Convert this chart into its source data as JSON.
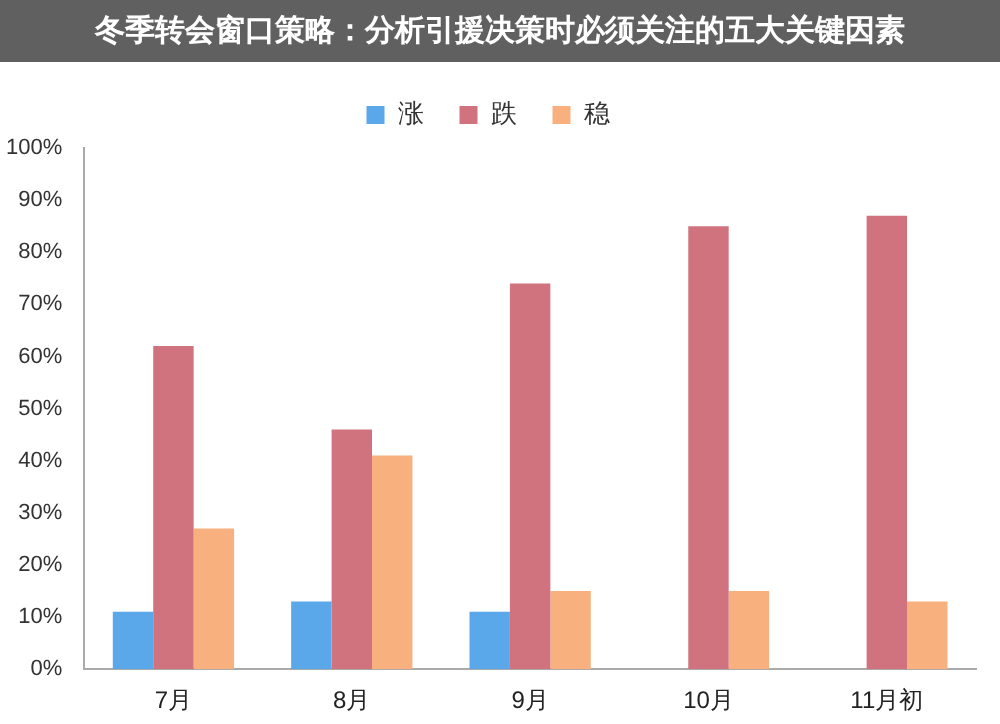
{
  "chart_data": {
    "type": "bar",
    "title": "冬季转会窗口策略：分析引援决策时必须关注的五大关键因素",
    "categories": [
      "7月",
      "8月",
      "9月",
      "10月",
      "11月初"
    ],
    "series": [
      {
        "name": "涨",
        "color": "#5aa7ea",
        "values": [
          11,
          13,
          11,
          0,
          0
        ]
      },
      {
        "name": "跌",
        "color": "#d0737e",
        "values": [
          62,
          46,
          74,
          85,
          87
        ]
      },
      {
        "name": "稳",
        "color": "#f8b07e",
        "values": [
          27,
          41,
          15,
          15,
          13
        ]
      }
    ],
    "ylim": [
      0,
      100
    ],
    "yticks": [
      {
        "value": 0,
        "label": "0%"
      },
      {
        "value": 10,
        "label": "10%"
      },
      {
        "value": 20,
        "label": "20%"
      },
      {
        "value": 30,
        "label": "30%"
      },
      {
        "value": 40,
        "label": "40%"
      },
      {
        "value": 50,
        "label": "50%"
      },
      {
        "value": 60,
        "label": "60%"
      },
      {
        "value": 70,
        "label": "70%"
      },
      {
        "value": 80,
        "label": "80%"
      },
      {
        "value": 90,
        "label": "90%"
      },
      {
        "value": 100,
        "label": "100%"
      }
    ],
    "grid": false,
    "legend": "top"
  }
}
